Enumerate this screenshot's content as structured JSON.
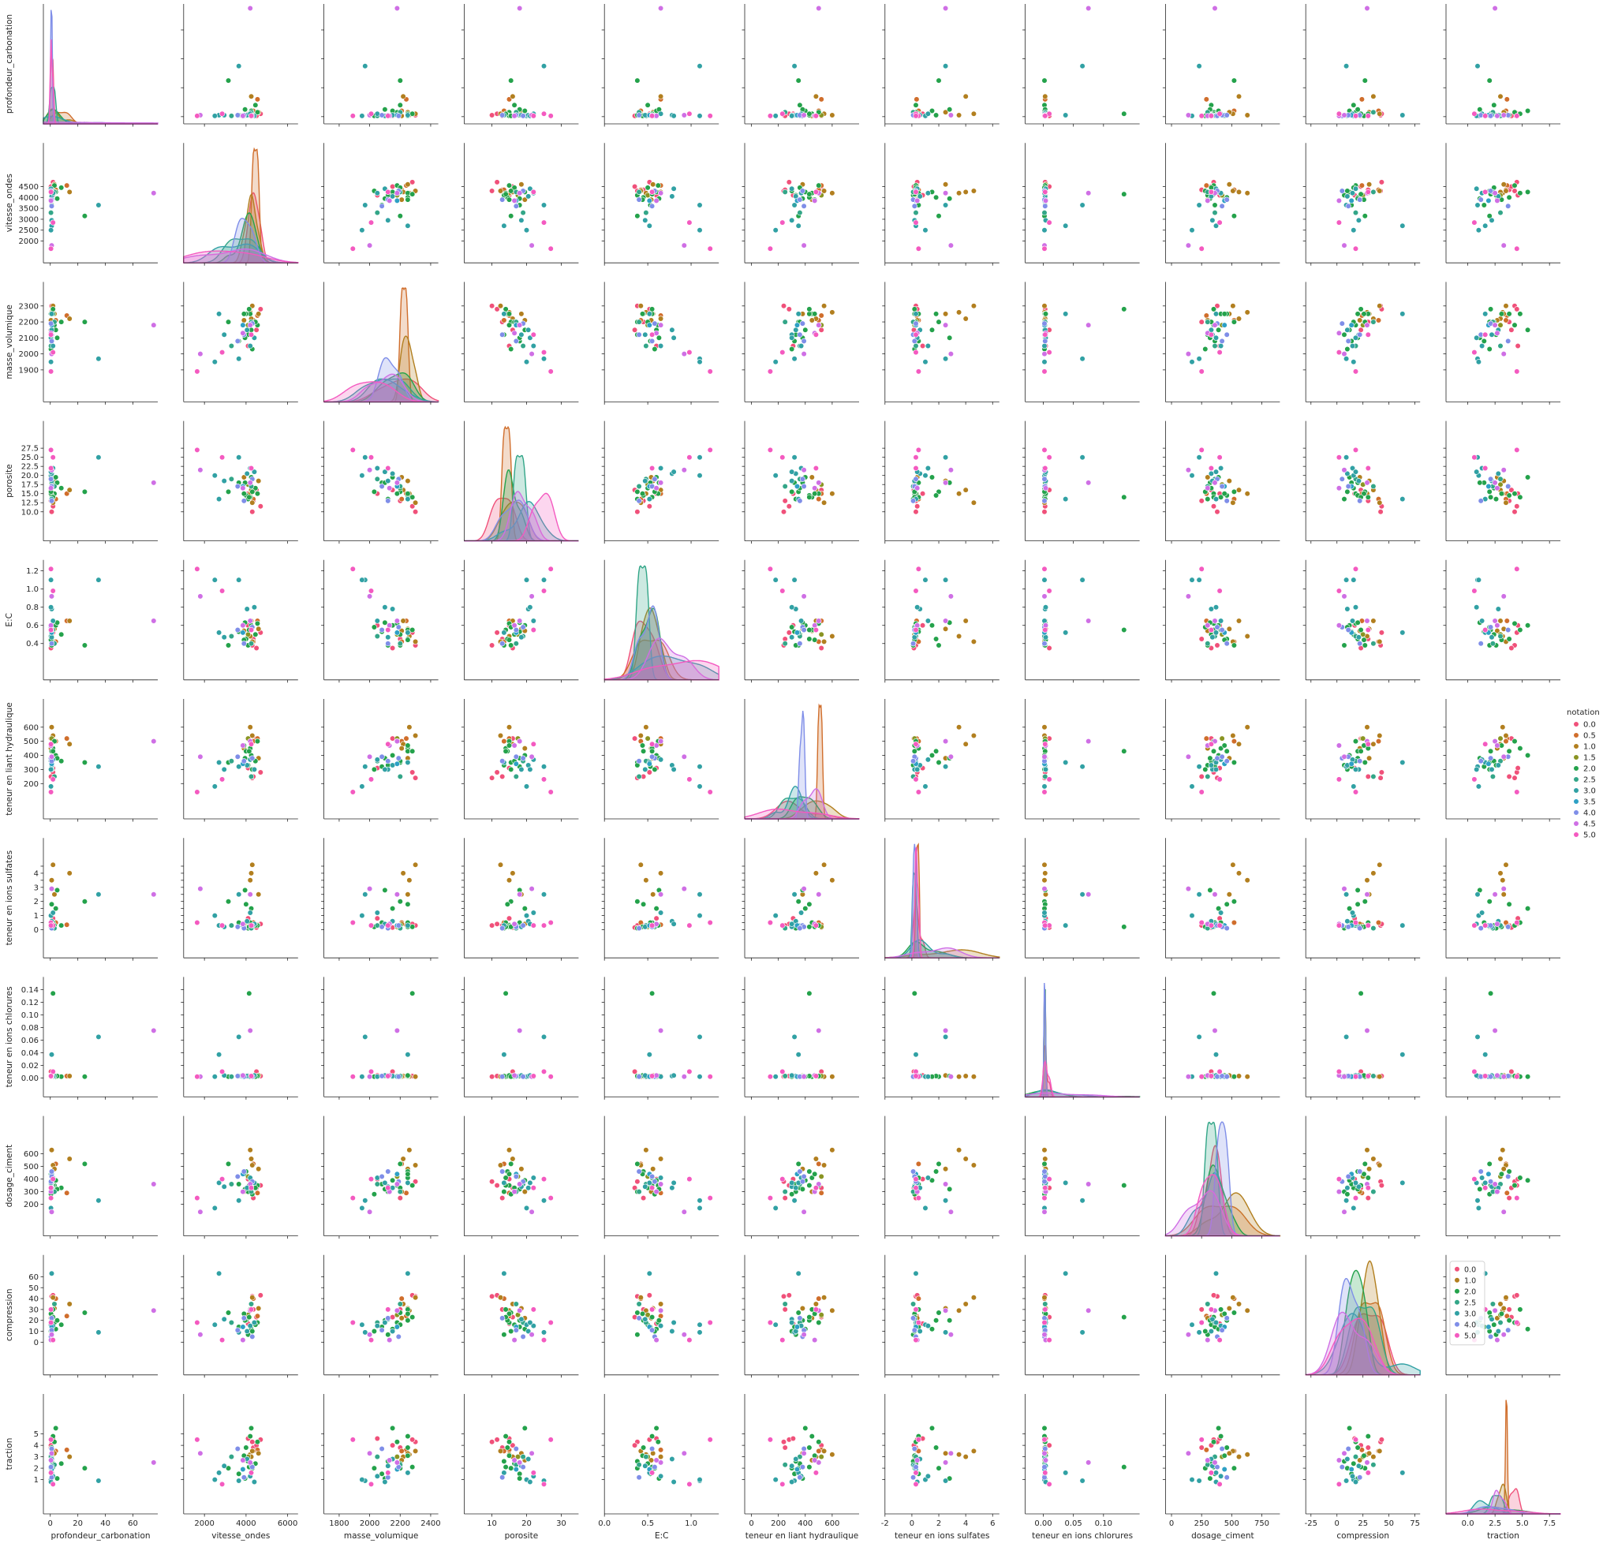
{
  "chart_data": {
    "type": "scatter",
    "kind": "pairplot",
    "variables": [
      {
        "key": "carb",
        "label": "profondeur_carbonation",
        "lim": [
          -5,
          78
        ],
        "ticks": [
          0,
          20,
          40,
          60
        ],
        "xticks": [
          0,
          20,
          40,
          60
        ]
      },
      {
        "key": "vit",
        "label": "vitesse_ondes",
        "lim": [
          1000,
          6500
        ],
        "ticks": [
          2000,
          2500,
          3000,
          3500,
          4000,
          4500
        ],
        "xticks": [
          2000,
          4000,
          6000
        ]
      },
      {
        "key": "masse",
        "label": "masse_volumique",
        "lim": [
          1700,
          2450
        ],
        "ticks": [
          1900,
          2000,
          2100,
          2200,
          2300
        ],
        "xticks": [
          1800,
          2000,
          2200,
          2400
        ]
      },
      {
        "key": "poro",
        "label": "porosite",
        "lim": [
          2,
          35
        ],
        "ticks": [
          10.0,
          12.5,
          15.0,
          17.5,
          20.0,
          22.5,
          25.0,
          27.5
        ],
        "xticks": [
          10,
          20,
          30
        ]
      },
      {
        "key": "ec",
        "label": "E:C",
        "lim": [
          0.0,
          1.32
        ],
        "ticks": [
          0.4,
          0.6,
          0.8,
          1.0,
          1.2
        ],
        "xticks": [
          0.0,
          0.5,
          1.0
        ]
      },
      {
        "key": "liant",
        "label": "teneur en liant hydraulique",
        "lim": [
          -50,
          800
        ],
        "ticks": [
          200,
          300,
          400,
          500,
          600
        ],
        "xticks": [
          0,
          200,
          400,
          600
        ]
      },
      {
        "key": "sulf",
        "label": "teneur en ions sulfates",
        "lim": [
          -2,
          6.5
        ],
        "ticks": [
          0,
          0.5,
          1.0,
          1.5,
          2.0,
          2.5,
          3.0,
          3.5,
          4.0,
          4.5
        ],
        "xticks": [
          -2,
          0,
          2,
          4,
          6
        ],
        "yticklabels": [
          "0",
          "",
          "1",
          "",
          "2",
          "",
          "3",
          "",
          "4",
          ""
        ]
      },
      {
        "key": "chlor",
        "label": "teneur en ions chlorures",
        "lim": [
          -0.03,
          0.16
        ],
        "ticks": [
          0.0,
          0.02,
          0.04,
          0.06,
          0.08,
          0.1,
          0.12,
          0.14
        ],
        "xticks": [
          0.0,
          0.05,
          0.1
        ]
      },
      {
        "key": "dos",
        "label": "dosage_ciment",
        "lim": [
          -50,
          900
        ],
        "ticks": [
          200,
          300,
          400,
          500,
          600
        ],
        "xticks": [
          0,
          250,
          500,
          750
        ]
      },
      {
        "key": "comp",
        "label": "compression",
        "lim": [
          -30,
          80
        ],
        "ticks": [
          0,
          10,
          20,
          30,
          40,
          50,
          60
        ],
        "xticks": [
          -25,
          0,
          25,
          50,
          75
        ]
      },
      {
        "key": "trac",
        "label": "traction",
        "lim": [
          -2,
          8.5
        ],
        "ticks": [
          1,
          2,
          3,
          4,
          5
        ],
        "xticks": [
          0.0,
          2.5,
          5.0,
          7.5
        ]
      }
    ],
    "hue_levels": [
      0.0,
      0.5,
      1.0,
      1.5,
      2.0,
      2.5,
      3.0,
      3.5,
      4.0,
      4.5,
      5.0
    ],
    "hue_colors": [
      "#f0517a",
      "#d06e2c",
      "#b27f1f",
      "#8a9423",
      "#24a24b",
      "#33a688",
      "#31a1a4",
      "#2ea0c5",
      "#7f8ee8",
      "#cf6fe5",
      "#f45ac0"
    ],
    "legend_outer": {
      "title": "notation",
      "labels": [
        "0.0",
        "0.5",
        "1.0",
        "1.5",
        "2.0",
        "2.5",
        "3.0",
        "3.5",
        "4.0",
        "4.5",
        "5.0"
      ]
    },
    "legend_inner": {
      "labels": [
        "0.0",
        "1.0",
        "2.0",
        "2.5",
        "3.0",
        "4.0",
        "5.0"
      ],
      "colors": [
        "#f0517a",
        "#b27f1f",
        "#24a24b",
        "#33a688",
        "#31a1a4",
        "#7f8ee8",
        "#f45ac0"
      ],
      "placement": "upper left of compression-vs-traction panel"
    },
    "points": [
      {
        "notation": 0.0,
        "values": [
          1,
          4300,
          2300,
          10.0,
          0.38,
          240,
          0.3,
          0.002,
          380,
          42,
          4.3
        ]
      },
      {
        "notation": 0.0,
        "values": [
          2,
          4700,
          2280,
          11.5,
          0.52,
          280,
          0.4,
          0.003,
          350,
          43,
          4.5
        ]
      },
      {
        "notation": 0.0,
        "values": [
          0.5,
          4350,
          2200,
          13.0,
          0.45,
          250,
          0.3,
          0.002,
          250,
          30,
          3.8
        ]
      },
      {
        "notation": 0.0,
        "values": [
          2,
          4100,
          2050,
          15.0,
          0.6,
          310,
          0.8,
          0.004,
          400,
          17,
          4.6
        ]
      },
      {
        "notation": 0.0,
        "values": [
          0.5,
          4500,
          2150,
          16.0,
          0.35,
          520,
          0.15,
          0.01,
          330,
          23,
          4.0
        ]
      },
      {
        "notation": 0.5,
        "values": [
          12,
          4550,
          2240,
          15.0,
          0.65,
          520,
          0.35,
          0.003,
          290,
          24,
          3.6
        ]
      },
      {
        "notation": 0.5,
        "values": [
          4,
          4350,
          2210,
          13.5,
          0.42,
          500,
          0.5,
          0.002,
          520,
          40,
          3.5
        ]
      },
      {
        "notation": 1.0,
        "values": [
          1,
          4200,
          2260,
          15.0,
          0.48,
          600,
          3.5,
          0.002,
          630,
          29,
          3.2
        ]
      },
      {
        "notation": 1.0,
        "values": [
          2,
          4300,
          2300,
          12.5,
          0.42,
          540,
          4.6,
          0.002,
          510,
          41,
          3.5
        ]
      },
      {
        "notation": 1.0,
        "values": [
          14,
          4250,
          2220,
          16.0,
          0.65,
          480,
          4.0,
          0.003,
          560,
          35,
          3.0
        ]
      },
      {
        "notation": 1.0,
        "values": [
          3,
          4600,
          2250,
          18.5,
          0.56,
          380,
          2.5,
          0.004,
          480,
          31,
          3.3
        ]
      },
      {
        "notation": 1.0,
        "values": [
          0.5,
          3900,
          2210,
          19.5,
          0.54,
          450,
          0.4,
          0.002,
          300,
          22,
          2.7
        ]
      },
      {
        "notation": 1.5,
        "values": [
          1,
          4100,
          2180,
          17.5,
          0.5,
          520,
          0.2,
          0.003,
          420,
          25,
          3.0
        ]
      },
      {
        "notation": 2.0,
        "values": [
          25,
          3150,
          2200,
          15.5,
          0.38,
          350,
          2.0,
          0.002,
          520,
          27,
          2.0
        ]
      },
      {
        "notation": 2.0,
        "values": [
          2,
          4200,
          2250,
          14.0,
          0.55,
          450,
          0.5,
          0.002,
          410,
          30,
          4.8
        ]
      },
      {
        "notation": 2.0,
        "values": [
          3,
          4550,
          2180,
          15.0,
          0.62,
          500,
          0.3,
          0.003,
          350,
          18,
          4.3
        ]
      },
      {
        "notation": 2.0,
        "values": [
          1,
          4000,
          2250,
          14.5,
          0.45,
          430,
          1.8,
          0.003,
          460,
          20,
          3.8
        ]
      },
      {
        "notation": 2.0,
        "values": [
          8,
          4450,
          2200,
          16.5,
          0.5,
          360,
          0.3,
          0.002,
          330,
          16,
          2.4
        ]
      },
      {
        "notation": 2.0,
        "values": [
          1,
          3650,
          2080,
          18.0,
          0.53,
          320,
          0.5,
          0.003,
          360,
          14,
          1.5
        ]
      },
      {
        "notation": 2.0,
        "values": [
          4,
          4250,
          2150,
          19.5,
          0.6,
          400,
          1.5,
          0.002,
          390,
          12,
          5.5
        ]
      },
      {
        "notation": 2.0,
        "values": [
          0.5,
          3900,
          2250,
          15.0,
          0.44,
          470,
          0.2,
          0.004,
          440,
          26,
          3.1
        ]
      },
      {
        "notation": 2.0,
        "values": [
          1,
          4100,
          2120,
          13.5,
          0.38,
          330,
          0.1,
          0.003,
          300,
          7,
          2.6
        ]
      },
      {
        "notation": 2.0,
        "values": [
          0.5,
          4300,
          2030,
          15.5,
          0.58,
          300,
          0.2,
          0.002,
          280,
          10,
          2.0
        ]
      },
      {
        "notation": 2.0,
        "values": [
          2,
          4150,
          2280,
          14.0,
          0.55,
          430,
          0.2,
          0.134,
          350,
          23,
          2.1
        ]
      },
      {
        "notation": 2.0,
        "values": [
          5,
          3950,
          2100,
          18.0,
          0.63,
          380,
          2.8,
          0.003,
          320,
          20,
          1.1
        ]
      },
      {
        "notation": 2.5,
        "values": [
          0.5,
          3300,
          2050,
          19.0,
          0.48,
          360,
          0.3,
          0.002,
          360,
          18,
          3.0
        ]
      },
      {
        "notation": 2.5,
        "values": [
          3,
          4250,
          2200,
          17.0,
          0.4,
          250,
          0.1,
          0.003,
          300,
          35,
          2.3
        ]
      },
      {
        "notation": 3.0,
        "values": [
          1,
          2950,
          2120,
          18.5,
          0.47,
          300,
          0.2,
          0.004,
          340,
          21,
          2.2
        ]
      },
      {
        "notation": 3.0,
        "values": [
          35,
          3650,
          1970,
          25.0,
          1.1,
          320,
          2.5,
          0.065,
          230,
          9,
          0.9
        ]
      },
      {
        "notation": 3.0,
        "values": [
          1,
          2700,
          2250,
          13.5,
          0.52,
          350,
          0.3,
          0.037,
          370,
          63,
          1.6
        ]
      },
      {
        "notation": 3.0,
        "values": [
          0.5,
          2500,
          1950,
          20.0,
          1.1,
          180,
          1.0,
          0.002,
          170,
          16,
          1.0
        ]
      },
      {
        "notation": 3.0,
        "values": [
          1,
          4050,
          2150,
          20.5,
          0.78,
          330,
          0.6,
          0.003,
          330,
          10,
          2.8
        ]
      },
      {
        "notation": 3.0,
        "values": [
          2,
          4200,
          2050,
          22.0,
          0.65,
          370,
          1.2,
          0.002,
          410,
          15,
          1.3
        ]
      },
      {
        "notation": 3.0,
        "values": [
          0.5,
          4400,
          2100,
          21.0,
          0.8,
          300,
          0.4,
          0.004,
          370,
          18,
          0.8
        ]
      },
      {
        "notation": 3.5,
        "values": [
          1,
          3850,
          2180,
          17.0,
          0.52,
          340,
          0.3,
          0.002,
          440,
          14,
          1.9
        ]
      },
      {
        "notation": 4.0,
        "values": [
          0.5,
          4300,
          2190,
          19.0,
          0.58,
          380,
          0.3,
          0.002,
          380,
          5,
          2.1
        ]
      },
      {
        "notation": 4.0,
        "values": [
          1,
          3600,
          2080,
          17.0,
          0.55,
          390,
          0.2,
          0.003,
          420,
          11,
          3.7
        ]
      },
      {
        "notation": 4.0,
        "values": [
          1,
          3900,
          2120,
          13.0,
          0.4,
          360,
          0.1,
          0.002,
          460,
          22,
          1.2
        ]
      },
      {
        "notation": 4.5,
        "values": [
          75,
          4200,
          2180,
          18.0,
          0.65,
          500,
          2.5,
          0.075,
          360,
          29,
          2.5
        ]
      },
      {
        "notation": 4.5,
        "values": [
          1,
          1800,
          2000,
          21.5,
          0.92,
          390,
          2.9,
          0.002,
          140,
          7,
          3.3
        ]
      },
      {
        "notation": 4.5,
        "values": [
          0.5,
          3850,
          2130,
          16.5,
          0.6,
          470,
          0.4,
          0.004,
          300,
          2,
          2.7
        ]
      },
      {
        "notation": 5.0,
        "values": [
          0.5,
          1650,
          1890,
          27.0,
          1.22,
          140,
          0.5,
          0.002,
          250,
          18,
          4.5
        ]
      },
      {
        "notation": 5.0,
        "values": [
          2,
          2850,
          2010,
          25.0,
          0.98,
          230,
          0.3,
          0.01,
          400,
          2,
          0.6
        ]
      },
      {
        "notation": 5.0,
        "values": [
          0.5,
          4250,
          2120,
          22.0,
          0.55,
          480,
          0.3,
          0.003,
          330,
          30,
          1.6
        ]
      }
    ]
  }
}
